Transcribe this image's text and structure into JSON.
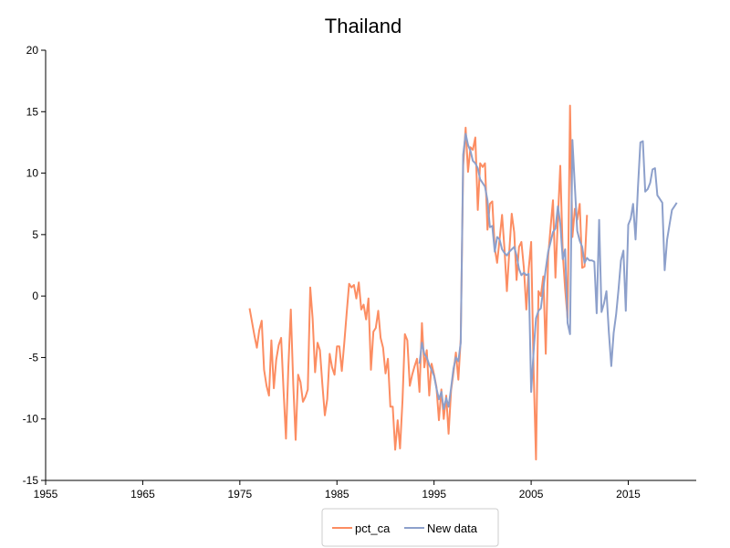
{
  "chart_data": {
    "type": "line",
    "title": "Thailand",
    "xlabel": "",
    "ylabel": "",
    "xlim": [
      1955,
      2022
    ],
    "ylim": [
      -15,
      20
    ],
    "x_ticks": [
      "1955",
      "1965",
      "1975",
      "1985",
      "1995",
      "2005",
      "2015"
    ],
    "y_ticks": [
      "20",
      "15",
      "10",
      "5",
      "0",
      "-5",
      "-10",
      "-15"
    ],
    "grid": false,
    "legend_position": "bottom-center",
    "series": [
      {
        "name": "pct_ca",
        "color": "#fc8d62",
        "points": [
          [
            1976.0,
            -1.0
          ],
          [
            1976.5,
            -3.2
          ],
          [
            1976.75,
            -4.2
          ],
          [
            1977.0,
            -2.8
          ],
          [
            1977.25,
            -2.0
          ],
          [
            1977.5,
            -6.0
          ],
          [
            1977.75,
            -7.3
          ],
          [
            1978.0,
            -8.1
          ],
          [
            1978.25,
            -3.6
          ],
          [
            1978.5,
            -7.5
          ],
          [
            1978.75,
            -5.2
          ],
          [
            1979.0,
            -4.0
          ],
          [
            1979.25,
            -3.4
          ],
          [
            1979.5,
            -7.6
          ],
          [
            1979.75,
            -11.6
          ],
          [
            1980.0,
            -5.8
          ],
          [
            1980.25,
            -1.1
          ],
          [
            1980.5,
            -7.2
          ],
          [
            1980.75,
            -11.7
          ],
          [
            1981.0,
            -6.4
          ],
          [
            1981.25,
            -7.0
          ],
          [
            1981.5,
            -8.6
          ],
          [
            1981.75,
            -8.2
          ],
          [
            1982.0,
            -7.6
          ],
          [
            1982.25,
            0.7
          ],
          [
            1982.5,
            -1.8
          ],
          [
            1982.75,
            -6.2
          ],
          [
            1983.0,
            -3.8
          ],
          [
            1983.25,
            -4.4
          ],
          [
            1983.5,
            -7.2
          ],
          [
            1983.75,
            -9.7
          ],
          [
            1984.0,
            -8.4
          ],
          [
            1984.25,
            -4.7
          ],
          [
            1984.5,
            -5.8
          ],
          [
            1984.75,
            -6.4
          ],
          [
            1985.0,
            -4.1
          ],
          [
            1985.25,
            -4.1
          ],
          [
            1985.5,
            -6.1
          ],
          [
            1985.75,
            -3.9
          ],
          [
            1986.0,
            -1.4
          ],
          [
            1986.25,
            1.0
          ],
          [
            1986.5,
            0.7
          ],
          [
            1986.75,
            0.9
          ],
          [
            1987.0,
            -0.2
          ],
          [
            1987.25,
            1.1
          ],
          [
            1987.5,
            -1.1
          ],
          [
            1987.75,
            -0.7
          ],
          [
            1988.0,
            -1.9
          ],
          [
            1988.25,
            -0.2
          ],
          [
            1988.5,
            -6.0
          ],
          [
            1988.75,
            -2.9
          ],
          [
            1989.0,
            -2.6
          ],
          [
            1989.25,
            -1.2
          ],
          [
            1989.5,
            -3.4
          ],
          [
            1989.75,
            -4.2
          ],
          [
            1990.0,
            -6.3
          ],
          [
            1990.25,
            -5.1
          ],
          [
            1990.5,
            -9.0
          ],
          [
            1990.75,
            -9.0
          ],
          [
            1991.0,
            -12.5
          ],
          [
            1991.25,
            -10.1
          ],
          [
            1991.5,
            -12.4
          ],
          [
            1991.75,
            -8.5
          ],
          [
            1992.0,
            -3.1
          ],
          [
            1992.25,
            -3.6
          ],
          [
            1992.5,
            -7.3
          ],
          [
            1992.75,
            -6.4
          ],
          [
            1993.0,
            -5.7
          ],
          [
            1993.25,
            -5.1
          ],
          [
            1993.5,
            -7.8
          ],
          [
            1993.75,
            -2.2
          ],
          [
            1994.0,
            -5.8
          ],
          [
            1994.25,
            -4.4
          ],
          [
            1994.5,
            -8.1
          ],
          [
            1994.75,
            -5.5
          ],
          [
            1995.0,
            -6.4
          ],
          [
            1995.25,
            -7.4
          ],
          [
            1995.5,
            -10.1
          ],
          [
            1995.75,
            -7.6
          ],
          [
            1996.0,
            -10.0
          ],
          [
            1996.25,
            -8.1
          ],
          [
            1996.5,
            -11.2
          ],
          [
            1996.75,
            -7.7
          ],
          [
            1997.0,
            -6.2
          ],
          [
            1997.25,
            -4.6
          ],
          [
            1997.5,
            -6.8
          ],
          [
            1997.75,
            -3.5
          ],
          [
            1998.0,
            10.6
          ],
          [
            1998.25,
            13.7
          ],
          [
            1998.5,
            10.1
          ],
          [
            1998.75,
            12.1
          ],
          [
            1999.0,
            11.9
          ],
          [
            1999.25,
            12.9
          ],
          [
            1999.5,
            7.0
          ],
          [
            1999.75,
            10.8
          ],
          [
            2000.0,
            10.5
          ],
          [
            2000.25,
            10.8
          ],
          [
            2000.5,
            5.4
          ],
          [
            2000.75,
            7.5
          ],
          [
            2001.0,
            7.7
          ],
          [
            2001.25,
            3.9
          ],
          [
            2001.5,
            2.7
          ],
          [
            2001.75,
            4.6
          ],
          [
            2002.0,
            6.6
          ],
          [
            2002.25,
            3.9
          ],
          [
            2002.5,
            0.4
          ],
          [
            2002.75,
            3.6
          ],
          [
            2003.0,
            6.7
          ],
          [
            2003.25,
            5.2
          ],
          [
            2003.5,
            1.3
          ],
          [
            2003.75,
            4.0
          ],
          [
            2004.0,
            4.4
          ],
          [
            2004.25,
            2.3
          ],
          [
            2004.5,
            -1.1
          ],
          [
            2004.75,
            2.2
          ],
          [
            2005.0,
            4.4
          ],
          [
            2005.25,
            -6.1
          ],
          [
            2005.5,
            -13.3
          ],
          [
            2005.75,
            0.4
          ],
          [
            2006.0,
            0.0
          ],
          [
            2006.25,
            1.6
          ],
          [
            2006.5,
            -4.7
          ],
          [
            2006.75,
            3.2
          ],
          [
            2007.0,
            5.6
          ],
          [
            2007.25,
            7.8
          ],
          [
            2007.5,
            1.5
          ],
          [
            2007.75,
            6.3
          ],
          [
            2008.0,
            10.6
          ],
          [
            2008.25,
            3.5
          ],
          [
            2008.5,
            0.6
          ],
          [
            2008.75,
            -1.8
          ],
          [
            2009.0,
            15.5
          ],
          [
            2009.25,
            4.8
          ],
          [
            2009.5,
            7.1
          ],
          [
            2009.75,
            6.2
          ],
          [
            2010.0,
            7.5
          ],
          [
            2010.25,
            2.3
          ],
          [
            2010.5,
            2.4
          ],
          [
            2010.75,
            6.6
          ]
        ]
      },
      {
        "name": "New data",
        "color": "#8da0cb",
        "points": [
          [
            1993.5,
            -5.5
          ],
          [
            1993.75,
            -3.8
          ],
          [
            1994.0,
            -4.7
          ],
          [
            1994.25,
            -5.0
          ],
          [
            1994.5,
            -5.6
          ],
          [
            1994.75,
            -6.0
          ],
          [
            1995.0,
            -6.5
          ],
          [
            1995.25,
            -7.5
          ],
          [
            1995.5,
            -8.4
          ],
          [
            1995.75,
            -7.8
          ],
          [
            1996.0,
            -9.2
          ],
          [
            1996.25,
            -8.3
          ],
          [
            1996.5,
            -9.0
          ],
          [
            1996.75,
            -7.5
          ],
          [
            1997.0,
            -5.9
          ],
          [
            1997.25,
            -5.0
          ],
          [
            1997.5,
            -5.3
          ],
          [
            1997.75,
            -3.8
          ],
          [
            1998.0,
            11.5
          ],
          [
            1998.25,
            13.2
          ],
          [
            1998.5,
            12.3
          ],
          [
            1998.75,
            11.8
          ],
          [
            1999.0,
            11.0
          ],
          [
            1999.25,
            10.8
          ],
          [
            1999.5,
            10.4
          ],
          [
            1999.75,
            9.5
          ],
          [
            2000.0,
            9.2
          ],
          [
            2000.25,
            8.9
          ],
          [
            2000.5,
            7.8
          ],
          [
            2000.75,
            5.6
          ],
          [
            2001.0,
            5.7
          ],
          [
            2001.25,
            3.6
          ],
          [
            2001.5,
            4.8
          ],
          [
            2001.75,
            4.6
          ],
          [
            2002.0,
            3.8
          ],
          [
            2002.25,
            3.5
          ],
          [
            2002.5,
            3.3
          ],
          [
            2002.75,
            3.6
          ],
          [
            2003.0,
            3.8
          ],
          [
            2003.25,
            4.0
          ],
          [
            2003.5,
            3.3
          ],
          [
            2003.75,
            2.2
          ],
          [
            2004.0,
            1.7
          ],
          [
            2004.25,
            1.9
          ],
          [
            2004.5,
            1.7
          ],
          [
            2004.75,
            1.8
          ],
          [
            2005.0,
            -7.8
          ],
          [
            2005.25,
            -4.5
          ],
          [
            2005.5,
            -1.8
          ],
          [
            2005.75,
            -1.2
          ],
          [
            2006.0,
            -1.0
          ],
          [
            2006.25,
            0.6
          ],
          [
            2006.5,
            2.2
          ],
          [
            2006.75,
            3.6
          ],
          [
            2007.0,
            4.4
          ],
          [
            2007.25,
            5.2
          ],
          [
            2007.5,
            5.5
          ],
          [
            2007.75,
            7.3
          ],
          [
            2008.0,
            5.9
          ],
          [
            2008.25,
            3.0
          ],
          [
            2008.5,
            3.8
          ],
          [
            2008.75,
            -2.2
          ],
          [
            2009.0,
            -3.1
          ],
          [
            2009.25,
            12.7
          ],
          [
            2009.5,
            8.9
          ],
          [
            2009.75,
            5.3
          ],
          [
            2010.0,
            4.5
          ],
          [
            2010.25,
            4.0
          ],
          [
            2010.5,
            2.7
          ],
          [
            2010.75,
            3.1
          ],
          [
            2011.0,
            2.9
          ],
          [
            2011.25,
            2.9
          ],
          [
            2011.5,
            2.8
          ],
          [
            2011.75,
            -1.4
          ],
          [
            2012.0,
            6.2
          ],
          [
            2012.25,
            -1.3
          ],
          [
            2012.5,
            -0.6
          ],
          [
            2012.75,
            0.4
          ],
          [
            2013.0,
            -2.9
          ],
          [
            2013.25,
            -5.7
          ],
          [
            2013.5,
            -3.0
          ],
          [
            2013.75,
            -1.5
          ],
          [
            2014.0,
            0.6
          ],
          [
            2014.25,
            2.9
          ],
          [
            2014.5,
            3.7
          ],
          [
            2014.75,
            -1.2
          ],
          [
            2015.0,
            5.8
          ],
          [
            2015.25,
            6.3
          ],
          [
            2015.5,
            7.5
          ],
          [
            2015.75,
            4.6
          ],
          [
            2016.0,
            8.8
          ],
          [
            2016.25,
            12.5
          ],
          [
            2016.5,
            12.6
          ],
          [
            2016.75,
            8.5
          ],
          [
            2017.0,
            8.7
          ],
          [
            2017.25,
            9.2
          ],
          [
            2017.5,
            10.3
          ],
          [
            2017.75,
            10.4
          ],
          [
            2018.0,
            8.2
          ],
          [
            2018.25,
            7.9
          ],
          [
            2018.5,
            7.6
          ],
          [
            2018.75,
            2.1
          ],
          [
            2019.0,
            4.6
          ],
          [
            2019.25,
            5.8
          ],
          [
            2019.5,
            7.0
          ],
          [
            2019.75,
            7.3
          ],
          [
            2020.0,
            7.6
          ]
        ]
      }
    ]
  }
}
